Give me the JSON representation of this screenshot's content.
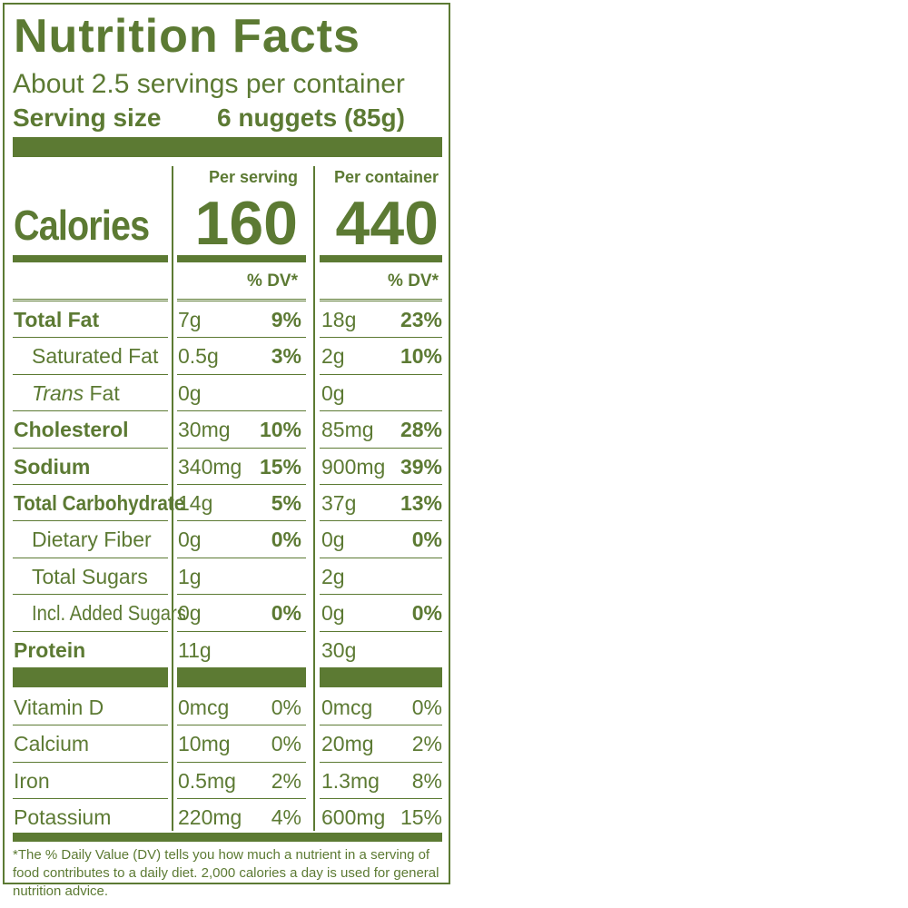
{
  "label": {
    "title": "Nutrition Facts",
    "servings_per_container": "About 2.5 servings per container",
    "serving_size_label": "Serving size",
    "serving_size_value": "6 nuggets (85g)",
    "per_serving_header": "Per serving",
    "per_container_header": "Per container",
    "calories_label": "Calories",
    "calories_per_serving": "160",
    "calories_per_container": "440",
    "dv_header": "% DV*",
    "color": "#5c7a33"
  },
  "nutrients": [
    {
      "name": "Total Fat",
      "amount1": "7g",
      "dv1": "9%",
      "amount2": "18g",
      "dv2": "23%"
    },
    {
      "name": "Saturated Fat",
      "amount1": "0.5g",
      "dv1": "3%",
      "amount2": "2g",
      "dv2": "10%"
    },
    {
      "name_italic": "Trans",
      "name": " Fat",
      "amount1": "0g",
      "dv1": "",
      "amount2": "0g",
      "dv2": ""
    },
    {
      "name": "Cholesterol",
      "amount1": "30mg",
      "dv1": "10%",
      "amount2": "85mg",
      "dv2": "28%"
    },
    {
      "name": "Sodium",
      "amount1": "340mg",
      "dv1": "15%",
      "amount2": "900mg",
      "dv2": "39%"
    },
    {
      "name": "Total Carbohydrate",
      "amount1": "14g",
      "dv1": "5%",
      "amount2": "37g",
      "dv2": "13%"
    },
    {
      "name": "Dietary Fiber",
      "amount1": "0g",
      "dv1": "0%",
      "amount2": "0g",
      "dv2": "0%"
    },
    {
      "name": "Total Sugars",
      "amount1": "1g",
      "dv1": "",
      "amount2": "2g",
      "dv2": ""
    },
    {
      "name": "Incl. Added Sugars",
      "amount1": "0g",
      "dv1": "0%",
      "amount2": "0g",
      "dv2": "0%"
    },
    {
      "name": "Protein",
      "amount1": "11g",
      "dv1": "",
      "amount2": "30g",
      "dv2": ""
    }
  ],
  "vitamins": [
    {
      "name": "Vitamin D",
      "amount1": "0mcg",
      "dv1": "0%",
      "amount2": "0mcg",
      "dv2": "0%"
    },
    {
      "name": "Calcium",
      "amount1": "10mg",
      "dv1": "0%",
      "amount2": "20mg",
      "dv2": "2%"
    },
    {
      "name": "Iron",
      "amount1": "0.5mg",
      "dv1": "2%",
      "amount2": "1.3mg",
      "dv2": "8%"
    },
    {
      "name": "Potassium",
      "amount1": "220mg",
      "dv1": "4%",
      "amount2": "600mg",
      "dv2": "15%"
    }
  ],
  "footnote": "*The % Daily Value (DV) tells you how much a nutrient in a serving of food contributes to a daily diet. 2,000 calories a day is used for general nutrition advice."
}
